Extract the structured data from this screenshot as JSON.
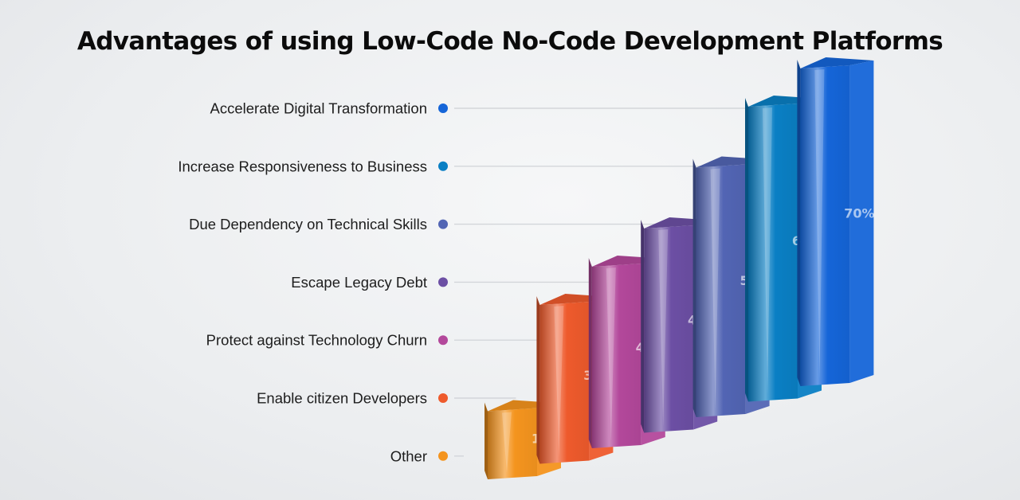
{
  "title": "Advantages of using Low-Code No-Code Development Platforms",
  "chart_data": {
    "type": "bar",
    "title": "Advantages of using Low-Code No-Code Development Platforms",
    "categories": [
      "Accelerate Digital Transformation",
      "Increase Responsiveness to Business",
      "Due Dependency on Technical Skills",
      "Escape Legacy Debt",
      "Protect against Technology Churn",
      "Enable citizen Developers",
      "Other"
    ],
    "values": [
      70,
      65,
      55,
      45,
      40,
      35,
      15
    ],
    "value_labels": [
      "70%",
      "65%",
      "55%",
      "45%",
      "40%",
      "35%",
      "15%"
    ],
    "colors": [
      "#1565d8",
      "#0a7fc4",
      "#5265b4",
      "#6c4fa4",
      "#b3489b",
      "#ee5a2c",
      "#f4941e"
    ],
    "xlabel": "",
    "ylabel": "",
    "ylim": [
      0,
      70
    ],
    "grid": false,
    "legend": "none"
  }
}
